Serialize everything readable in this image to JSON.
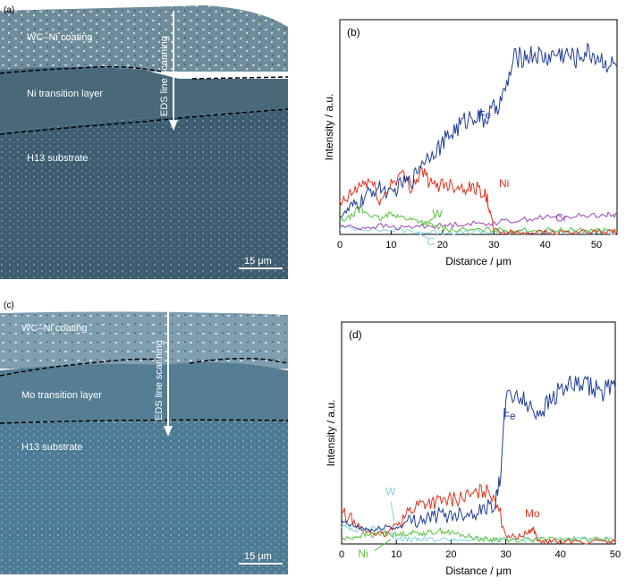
{
  "panel_a": {
    "letter": "(a)",
    "coating_label": "WC–Ni coating",
    "transition_label": "Ni transition layer",
    "substrate_label": "H13 substrate",
    "scan_label": "EDS line scanning",
    "scale_label": "15 μm"
  },
  "panel_c": {
    "letter": "(c)",
    "coating_label": "WC–Ni coating",
    "transition_label": "Mo transition layer",
    "substrate_label": "H13 substrate",
    "scan_label": "EDS line scanning",
    "scale_label": "15 μm"
  },
  "colors": {
    "Fe": "#1f3f9a",
    "Ni": "#e0321e",
    "Mo": "#e0321e",
    "W": "#5cc440",
    "Cr": "#9b45b8",
    "C": "#7fd2e0",
    "Ni_d": "#5cc440",
    "W_d": "#7fd2e0",
    "micro_bg": "#3f6276",
    "coating_bg": "#7e97a3"
  },
  "chart_data": [
    {
      "type": "line",
      "panel": "(b)",
      "xlabel": "Distance / μm",
      "ylabel": "Intensity / a.u.",
      "xlim": [
        0,
        54
      ],
      "ylim": [
        0,
        100
      ],
      "xticks": [
        0,
        10,
        20,
        30,
        40,
        50
      ],
      "series": [
        {
          "name": "Fe",
          "x": [
            0,
            2,
            4,
            6,
            8,
            10,
            12,
            14,
            16,
            18,
            20,
            22,
            24,
            26,
            28,
            30,
            32,
            34,
            36,
            38,
            40,
            42,
            44,
            46,
            48,
            50,
            52,
            54
          ],
          "values": [
            8,
            12,
            15,
            20,
            22,
            18,
            24,
            25,
            34,
            38,
            42,
            48,
            52,
            56,
            53,
            58,
            65,
            82,
            83,
            84,
            82,
            84,
            84,
            82,
            85,
            83,
            80,
            78
          ]
        },
        {
          "name": "Ni",
          "x": [
            0,
            2,
            4,
            6,
            8,
            10,
            12,
            14,
            16,
            18,
            20,
            22,
            24,
            26,
            28,
            29,
            30,
            32,
            34,
            36,
            40,
            44,
            48,
            52,
            54
          ],
          "values": [
            13,
            18,
            23,
            25,
            15,
            24,
            28,
            22,
            30,
            22,
            24,
            23,
            22,
            22,
            20,
            14,
            2,
            1,
            1,
            1,
            1,
            1,
            1,
            1,
            1
          ]
        },
        {
          "name": "W",
          "x": [
            0,
            2,
            4,
            6,
            8,
            10,
            12,
            14,
            16,
            18,
            20,
            22,
            26,
            30,
            34,
            38,
            42,
            46,
            50,
            54
          ],
          "values": [
            6,
            8,
            12,
            9,
            7,
            10,
            8,
            7,
            6,
            4,
            3,
            2,
            2,
            2,
            2,
            2,
            2,
            2,
            2,
            2
          ]
        },
        {
          "name": "Cr",
          "x": [
            0,
            4,
            8,
            12,
            16,
            20,
            24,
            28,
            32,
            36,
            40,
            44,
            48,
            52,
            54
          ],
          "values": [
            4,
            3,
            4,
            3,
            4,
            4,
            5,
            5,
            6,
            7,
            8,
            8,
            9,
            9,
            9
          ]
        },
        {
          "name": "C",
          "x": [
            0,
            4,
            8,
            12,
            16,
            20,
            24,
            28,
            32,
            36,
            40,
            44,
            48,
            52,
            54
          ],
          "values": [
            3,
            3,
            2,
            2,
            1,
            1,
            1,
            1,
            1,
            1,
            1,
            1,
            1,
            1,
            1
          ]
        }
      ]
    },
    {
      "type": "line",
      "panel": "(d)",
      "xlabel": "Distance / μm",
      "ylabel": "Intensity / a.u.",
      "xlim": [
        0,
        50
      ],
      "ylim": [
        0,
        100
      ],
      "xticks": [
        0,
        10,
        20,
        30,
        40,
        50
      ],
      "series": [
        {
          "name": "Fe",
          "x": [
            0,
            2,
            4,
            6,
            8,
            10,
            12,
            14,
            16,
            18,
            20,
            22,
            24,
            26,
            28,
            29,
            30,
            32,
            34,
            36,
            38,
            40,
            42,
            44,
            46,
            48,
            50
          ],
          "values": [
            10,
            8,
            7,
            6,
            8,
            7,
            10,
            11,
            12,
            13,
            13,
            14,
            14,
            16,
            18,
            30,
            65,
            68,
            62,
            60,
            64,
            70,
            71,
            71,
            70,
            69,
            70
          ]
        },
        {
          "name": "Mo",
          "x": [
            0,
            2,
            4,
            6,
            8,
            10,
            12,
            14,
            16,
            18,
            20,
            22,
            24,
            26,
            28,
            30,
            32,
            34,
            35,
            36,
            38,
            40,
            44,
            48,
            50
          ],
          "values": [
            14,
            10,
            6,
            5,
            4,
            9,
            14,
            18,
            19,
            19,
            20,
            21,
            22,
            24,
            22,
            4,
            3,
            5,
            7,
            1,
            1,
            1,
            1,
            1,
            1
          ]
        },
        {
          "name": "Ni",
          "x": [
            0,
            2,
            4,
            6,
            8,
            10,
            12,
            14,
            16,
            18,
            20,
            22,
            24,
            26,
            28,
            30,
            34,
            38,
            42,
            46,
            50
          ],
          "values": [
            2,
            3,
            4,
            4,
            5,
            4,
            5,
            5,
            5,
            6,
            5,
            4,
            3,
            2,
            2,
            2,
            2,
            2,
            2,
            2,
            2
          ]
        },
        {
          "name": "W",
          "x": [
            0,
            2,
            4,
            6,
            8,
            10,
            12,
            14,
            16,
            20,
            24,
            28,
            32,
            36,
            40,
            44,
            48,
            50
          ],
          "values": [
            8,
            7,
            6,
            7,
            6,
            3,
            2,
            2,
            2,
            2,
            2,
            2,
            2,
            2,
            2,
            2,
            2,
            2
          ]
        }
      ]
    }
  ]
}
